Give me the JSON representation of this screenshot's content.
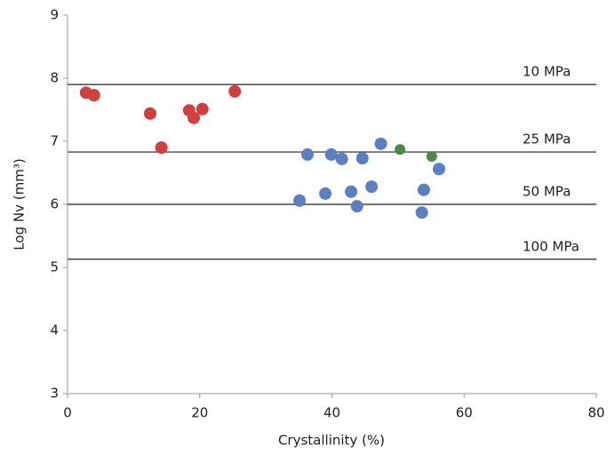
{
  "chart_data": {
    "type": "scatter",
    "x_label": "Crystallinity (%)",
    "y_label": "Log Nv (mm³)",
    "xlim": [
      0,
      80
    ],
    "xticks": [
      0,
      20,
      40,
      60,
      80
    ],
    "ylim": [
      3,
      9
    ],
    "yticks": [
      3,
      4,
      5,
      6,
      7,
      8,
      9
    ],
    "reference_lines": [
      {
        "value": 7.9,
        "label": "10 MPa"
      },
      {
        "value": 6.83,
        "label": "25 MPa"
      },
      {
        "value": 6.0,
        "label": "50 MPa"
      },
      {
        "value": 5.13,
        "label": "100 MPa"
      }
    ],
    "series": [
      {
        "color": "#d0413e",
        "x": [
          2.8,
          4.0,
          12.5,
          14.2,
          18.4,
          19.1,
          20.4,
          25.3
        ],
        "values": [
          7.77,
          7.73,
          7.44,
          6.9,
          7.49,
          7.37,
          7.51,
          7.79
        ]
      },
      {
        "color": "#5b7fc0",
        "x": [
          35.1,
          36.3,
          39.0,
          39.9,
          41.5,
          42.9,
          43.8,
          44.6,
          46.0,
          47.4,
          53.6,
          53.9,
          56.2
        ],
        "values": [
          6.06,
          6.79,
          6.17,
          6.79,
          6.72,
          6.2,
          5.97,
          6.73,
          6.28,
          6.96,
          5.87,
          6.23,
          6.56
        ]
      },
      {
        "color": "#4b8a48",
        "x": [
          50.3,
          55.1
        ],
        "values": [
          6.87,
          6.76
        ]
      }
    ]
  }
}
